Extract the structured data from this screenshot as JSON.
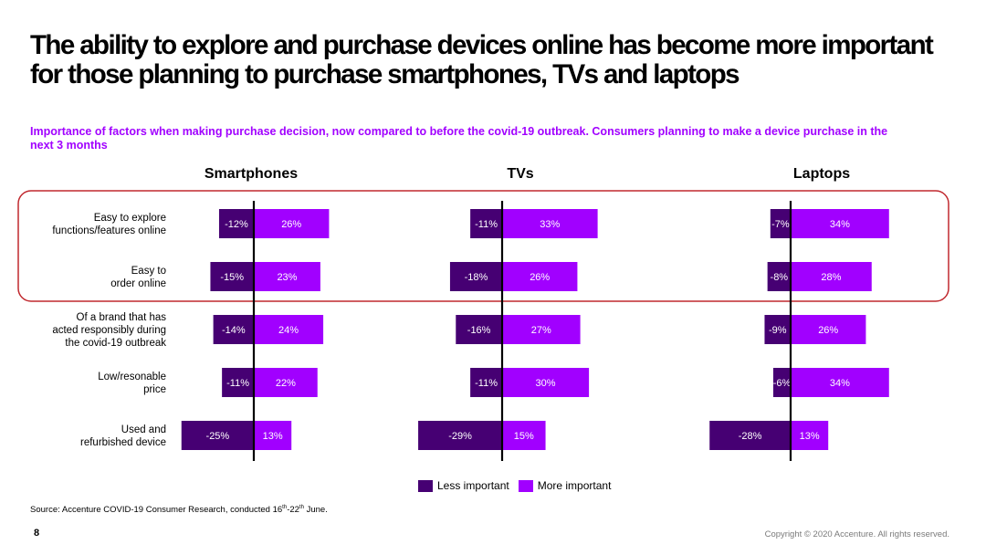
{
  "title": "The ability to explore and purchase devices online has become more important for those planning to  purchase smartphones, TVs and laptops",
  "subtitle": "Importance of factors when making purchase decision, now compared to before the covid-19 outbreak. Consumers planning to make a device purchase in the next 3 months",
  "colors": {
    "less": "#460073",
    "more": "#a100ff",
    "highlight": "#c0282e"
  },
  "legend": {
    "less_label": "Less important",
    "more_label": "More important"
  },
  "source": {
    "prefix": "Source: Accenture COVID-19 Consumer Research, conducted 16",
    "sup1": "th",
    "middle": "-22",
    "sup2": "th",
    "suffix": " June."
  },
  "page_number": "8",
  "copyright": "Copyright © 2020 Accenture. All rights reserved.",
  "chart_data": {
    "type": "bar",
    "orientation": "diverging-horizontal",
    "categories": [
      [
        "Easy to explore",
        "functions/features online"
      ],
      [
        "Easy to",
        "order online"
      ],
      [
        "Of a brand that has",
        "acted responsibly during",
        "the covid-19 outbreak"
      ],
      [
        "Low/resonable",
        "price"
      ],
      [
        "Used and",
        "refurbished device"
      ]
    ],
    "highlighted_rows": [
      0,
      1
    ],
    "panels": [
      {
        "title": "Smartphones",
        "less": [
          -12,
          -15,
          -14,
          -11,
          -25
        ],
        "more": [
          26,
          23,
          24,
          22,
          13
        ]
      },
      {
        "title": "TVs",
        "less": [
          -11,
          -18,
          -16,
          -11,
          -29
        ],
        "more": [
          33,
          26,
          27,
          30,
          15
        ]
      },
      {
        "title": "Laptops",
        "less": [
          -7,
          -8,
          -9,
          -6,
          -28
        ],
        "more": [
          34,
          28,
          26,
          34,
          13
        ]
      }
    ],
    "series": [
      {
        "name": "Less important"
      },
      {
        "name": "More important"
      }
    ],
    "value_suffix": "%"
  }
}
